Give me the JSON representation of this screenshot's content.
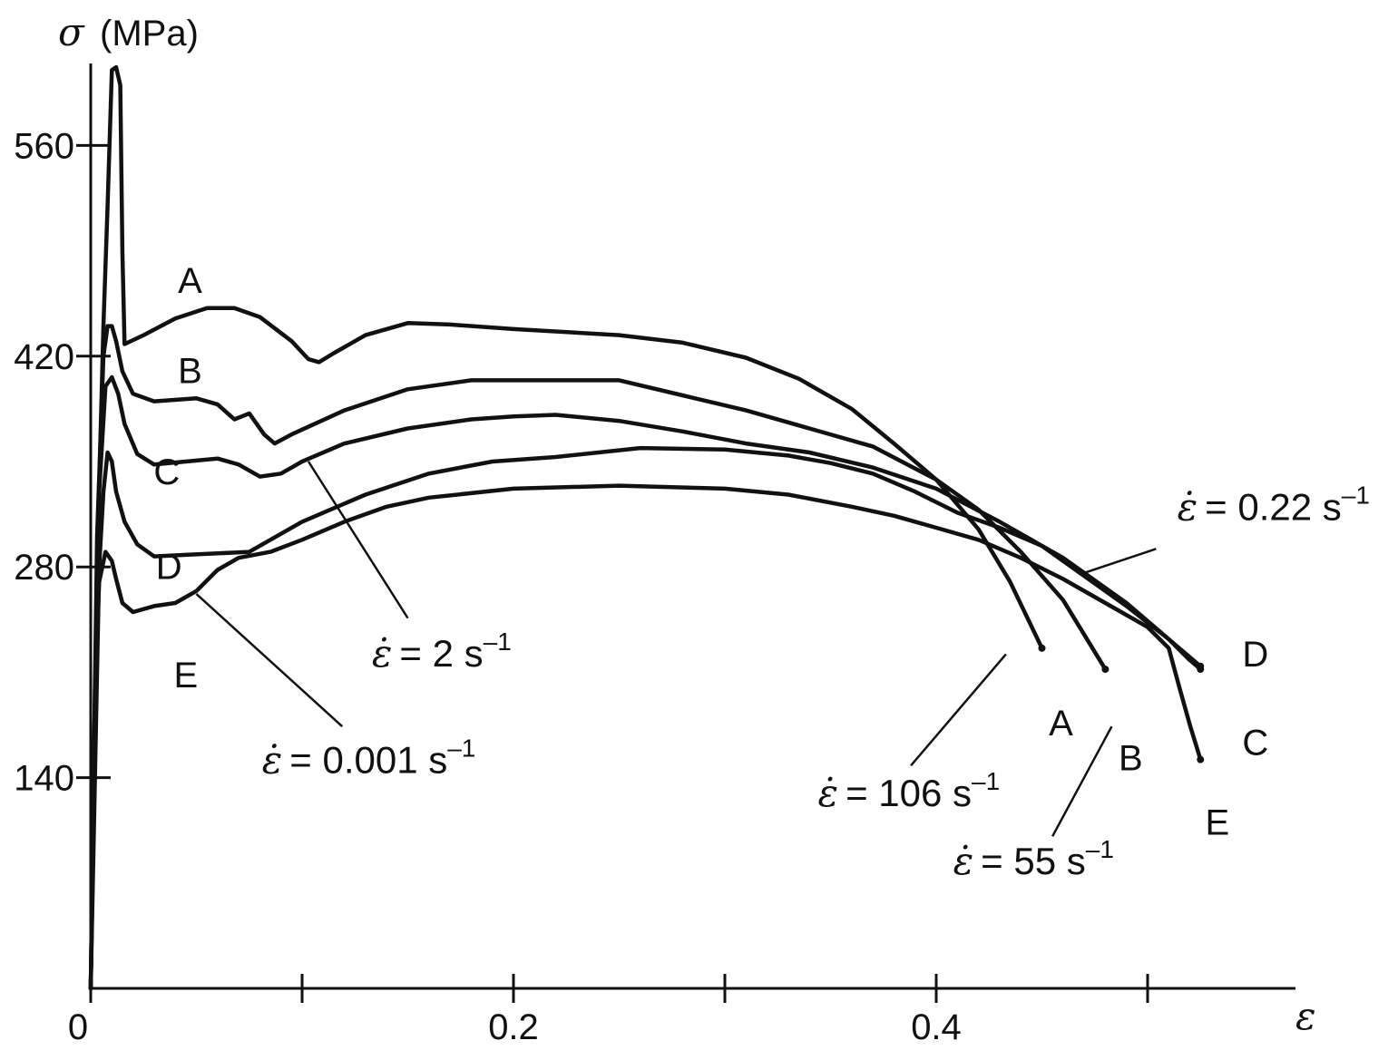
{
  "chart_data": {
    "type": "line",
    "ylabel_symbol": "σ",
    "ylabel_unit": "(MPa)",
    "xlabel": "ε",
    "xlim": [
      0,
      0.57
    ],
    "ylim": [
      0,
      600
    ],
    "x_ticks": [
      {
        "value": 0,
        "label": "0"
      },
      {
        "value": 0.1,
        "label": ""
      },
      {
        "value": 0.2,
        "label": "0.2"
      },
      {
        "value": 0.3,
        "label": ""
      },
      {
        "value": 0.4,
        "label": "0.4"
      },
      {
        "value": 0.5,
        "label": ""
      }
    ],
    "y_ticks": [
      {
        "value": 140,
        "label": "140"
      },
      {
        "value": 280,
        "label": "280"
      },
      {
        "value": 420,
        "label": "420"
      },
      {
        "value": 560,
        "label": "560"
      }
    ],
    "grid": false,
    "legend": "none",
    "series": [
      {
        "name": "A",
        "rate_symbol": "ε̇",
        "rate_text": "= 106 s",
        "rate_exp": "–1",
        "points": [
          [
            0,
            0
          ],
          [
            0.003,
            280
          ],
          [
            0.006,
            440
          ],
          [
            0.008,
            520
          ],
          [
            0.01,
            610
          ],
          [
            0.012,
            612
          ],
          [
            0.014,
            600
          ],
          [
            0.015,
            490
          ],
          [
            0.016,
            428
          ],
          [
            0.025,
            434
          ],
          [
            0.04,
            445
          ],
          [
            0.055,
            452
          ],
          [
            0.068,
            452
          ],
          [
            0.08,
            446
          ],
          [
            0.095,
            430
          ],
          [
            0.103,
            418
          ],
          [
            0.108,
            416
          ],
          [
            0.115,
            422
          ],
          [
            0.13,
            434
          ],
          [
            0.15,
            442
          ],
          [
            0.17,
            441
          ],
          [
            0.2,
            438
          ],
          [
            0.25,
            434
          ],
          [
            0.28,
            429
          ],
          [
            0.31,
            419
          ],
          [
            0.335,
            405
          ],
          [
            0.36,
            385
          ],
          [
            0.38,
            362
          ],
          [
            0.4,
            338
          ],
          [
            0.42,
            305
          ],
          [
            0.435,
            270
          ],
          [
            0.45,
            226
          ]
        ],
        "end_label": "A"
      },
      {
        "name": "B",
        "rate_symbol": "ε̇",
        "rate_text": "= 55 s",
        "rate_exp": "–1",
        "points": [
          [
            0,
            0
          ],
          [
            0.003,
            300
          ],
          [
            0.006,
            420
          ],
          [
            0.008,
            440
          ],
          [
            0.01,
            440
          ],
          [
            0.012,
            430
          ],
          [
            0.015,
            410
          ],
          [
            0.02,
            395
          ],
          [
            0.03,
            390
          ],
          [
            0.05,
            392
          ],
          [
            0.06,
            388
          ],
          [
            0.068,
            378
          ],
          [
            0.075,
            382
          ],
          [
            0.082,
            368
          ],
          [
            0.087,
            362
          ],
          [
            0.095,
            368
          ],
          [
            0.12,
            384
          ],
          [
            0.15,
            398
          ],
          [
            0.18,
            404
          ],
          [
            0.2,
            404
          ],
          [
            0.25,
            404
          ],
          [
            0.28,
            394
          ],
          [
            0.31,
            384
          ],
          [
            0.34,
            372
          ],
          [
            0.37,
            360
          ],
          [
            0.4,
            338
          ],
          [
            0.42,
            318
          ],
          [
            0.44,
            290
          ],
          [
            0.46,
            258
          ],
          [
            0.48,
            212
          ]
        ],
        "end_label": "B"
      },
      {
        "name": "C",
        "rate_symbol": "ε̇",
        "rate_text": "= 2 s",
        "rate_exp": "–1",
        "points": [
          [
            0,
            0
          ],
          [
            0.004,
            330
          ],
          [
            0.007,
            400
          ],
          [
            0.01,
            406
          ],
          [
            0.013,
            395
          ],
          [
            0.016,
            375
          ],
          [
            0.022,
            355
          ],
          [
            0.03,
            348
          ],
          [
            0.045,
            350
          ],
          [
            0.06,
            352
          ],
          [
            0.07,
            348
          ],
          [
            0.08,
            340
          ],
          [
            0.09,
            342
          ],
          [
            0.1,
            350
          ],
          [
            0.12,
            362
          ],
          [
            0.15,
            372
          ],
          [
            0.18,
            378
          ],
          [
            0.2,
            380
          ],
          [
            0.22,
            381
          ],
          [
            0.25,
            377
          ],
          [
            0.28,
            370
          ],
          [
            0.31,
            362
          ],
          [
            0.34,
            356
          ],
          [
            0.37,
            346
          ],
          [
            0.4,
            332
          ],
          [
            0.43,
            310
          ],
          [
            0.46,
            286
          ],
          [
            0.49,
            256
          ],
          [
            0.51,
            232
          ],
          [
            0.52,
            218
          ],
          [
            0.525,
            212
          ]
        ],
        "end_label": "C"
      },
      {
        "name": "D",
        "rate_symbol": "ε̇",
        "rate_text": "= 0.22 s",
        "rate_exp": "–1",
        "points": [
          [
            0,
            0
          ],
          [
            0.004,
            280
          ],
          [
            0.006,
            330
          ],
          [
            0.008,
            356
          ],
          [
            0.01,
            350
          ],
          [
            0.012,
            330
          ],
          [
            0.016,
            310
          ],
          [
            0.022,
            295
          ],
          [
            0.03,
            287
          ],
          [
            0.045,
            288
          ],
          [
            0.06,
            289
          ],
          [
            0.075,
            290
          ],
          [
            0.1,
            310
          ],
          [
            0.13,
            328
          ],
          [
            0.16,
            342
          ],
          [
            0.19,
            350
          ],
          [
            0.22,
            353
          ],
          [
            0.26,
            359
          ],
          [
            0.3,
            358
          ],
          [
            0.33,
            354
          ],
          [
            0.35,
            349
          ],
          [
            0.37,
            342
          ],
          [
            0.39,
            330
          ],
          [
            0.41,
            316
          ],
          [
            0.43,
            306
          ],
          [
            0.45,
            294
          ],
          [
            0.47,
            274
          ],
          [
            0.49,
            254
          ],
          [
            0.51,
            232
          ],
          [
            0.525,
            214
          ]
        ],
        "end_label": "D"
      },
      {
        "name": "E",
        "rate_symbol": "ε̇",
        "rate_text": "= 0.001 s",
        "rate_exp": "–1",
        "points": [
          [
            0,
            0
          ],
          [
            0.002,
            200
          ],
          [
            0.004,
            270
          ],
          [
            0.007,
            290
          ],
          [
            0.01,
            284
          ],
          [
            0.012,
            272
          ],
          [
            0.015,
            256
          ],
          [
            0.02,
            250
          ],
          [
            0.03,
            254
          ],
          [
            0.04,
            256
          ],
          [
            0.05,
            264
          ],
          [
            0.06,
            278
          ],
          [
            0.07,
            286
          ],
          [
            0.085,
            290
          ],
          [
            0.1,
            298
          ],
          [
            0.12,
            310
          ],
          [
            0.14,
            320
          ],
          [
            0.16,
            326
          ],
          [
            0.2,
            332
          ],
          [
            0.25,
            334
          ],
          [
            0.3,
            332
          ],
          [
            0.33,
            328
          ],
          [
            0.36,
            320
          ],
          [
            0.38,
            314
          ],
          [
            0.4,
            306
          ],
          [
            0.42,
            298
          ],
          [
            0.44,
            286
          ],
          [
            0.46,
            272
          ],
          [
            0.48,
            256
          ],
          [
            0.5,
            240
          ],
          [
            0.51,
            226
          ],
          [
            0.515,
            200
          ],
          [
            0.52,
            175
          ],
          [
            0.525,
            152
          ]
        ],
        "end_label": "E"
      }
    ],
    "annotations": [
      {
        "text": "A",
        "x": 0.047,
        "y": 462
      },
      {
        "text": "B",
        "x": 0.047,
        "y": 402
      },
      {
        "text": "C",
        "x": 0.036,
        "y": 335
      },
      {
        "text": "D",
        "x": 0.037,
        "y": 272
      },
      {
        "text": "E",
        "x": 0.045,
        "y": 200
      },
      {
        "text": "A",
        "x": 0.459,
        "y": 168
      },
      {
        "text": "B",
        "x": 0.492,
        "y": 145
      },
      {
        "text": "C",
        "x": 0.551,
        "y": 155
      },
      {
        "text": "D",
        "x": 0.551,
        "y": 214
      },
      {
        "text": "E",
        "x": 0.533,
        "y": 102
      }
    ],
    "rate_labels": [
      {
        "series": "C",
        "label_x": 0.133,
        "label_y": 214,
        "arrow": [
          [
            0.103,
            350
          ],
          [
            0.15,
            246
          ]
        ]
      },
      {
        "series": "E",
        "label_x": 0.081,
        "label_y": 143,
        "arrow": [
          [
            0.05,
            262
          ],
          [
            0.119,
            174
          ]
        ]
      },
      {
        "series": "A",
        "label_x": 0.344,
        "label_y": 121,
        "arrow": [
          [
            0.433,
            222
          ],
          [
            0.388,
            148
          ]
        ]
      },
      {
        "series": "B",
        "label_x": 0.408,
        "label_y": 76,
        "arrow": [
          [
            0.483,
            174
          ],
          [
            0.455,
            101
          ]
        ]
      },
      {
        "series": "D",
        "label_x": 0.514,
        "label_y": 311,
        "arrow": [
          [
            0.47,
            276
          ],
          [
            0.504,
            292
          ]
        ]
      }
    ]
  }
}
